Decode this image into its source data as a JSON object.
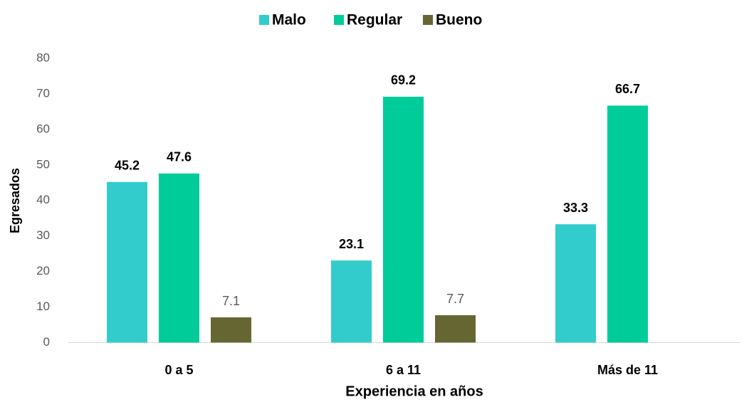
{
  "chart_data": {
    "type": "bar",
    "x_label": "Experiencia en años",
    "y_label": "Egresados",
    "categories": [
      "0 a 5",
      "6 a 11",
      "Más de 11"
    ],
    "series": [
      {
        "name": "Malo",
        "color": "#33cccc",
        "values": [
          45.2,
          23.1,
          33.3
        ]
      },
      {
        "name": "Regular",
        "color": "#00cc99",
        "values": [
          47.6,
          69.2,
          66.7
        ]
      },
      {
        "name": "Bueno",
        "color": "#666633",
        "values": [
          7.1,
          7.7,
          null
        ]
      }
    ],
    "ylim": [
      0,
      80
    ],
    "yticks": [
      0,
      10,
      20,
      30,
      40,
      50,
      60,
      70,
      80
    ],
    "grid": false,
    "legend": "top"
  }
}
